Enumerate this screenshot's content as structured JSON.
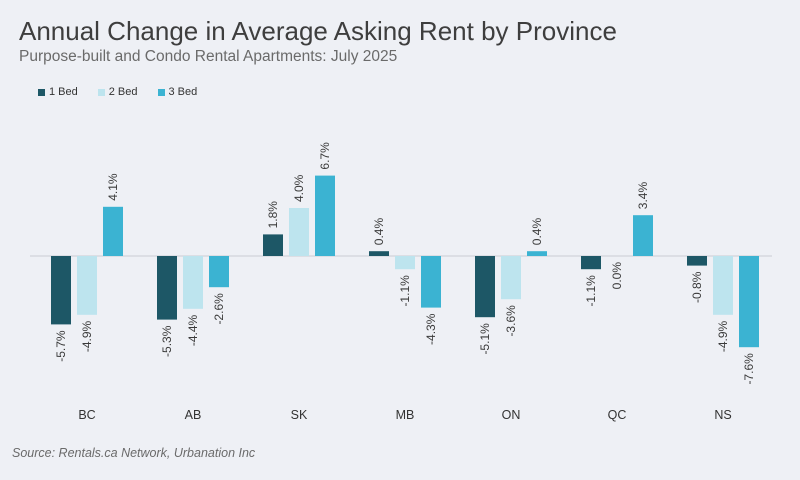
{
  "chart_data": {
    "type": "bar",
    "title": "Annual Change in Average Asking Rent by Province",
    "subtitle": "Purpose-built and Condo Rental Apartments: July 2025",
    "categories": [
      "BC",
      "AB",
      "SK",
      "MB",
      "ON",
      "QC",
      "NS"
    ],
    "series": [
      {
        "name": "1 Bed",
        "color": "#1d5766",
        "values": [
          -5.7,
          -5.3,
          1.8,
          0.4,
          -5.1,
          -1.1,
          -0.8
        ],
        "labels": [
          "-5.7%",
          "-5.3%",
          "1.8%",
          "0.4%",
          "-5.1%",
          "-1.1%",
          "-0.8%"
        ]
      },
      {
        "name": "2 Bed",
        "color": "#bde4ee",
        "values": [
          -4.9,
          -4.4,
          4.0,
          -1.1,
          -3.6,
          0.0,
          -4.9
        ],
        "labels": [
          "-4.9%",
          "-4.4%",
          "4.0%",
          "-1.1%",
          "-3.6%",
          "0.0%",
          "-4.9%"
        ]
      },
      {
        "name": "3 Bed",
        "color": "#3bb3d2",
        "values": [
          4.1,
          -2.6,
          6.7,
          -4.3,
          0.4,
          3.4,
          -7.6
        ],
        "labels": [
          "4.1%",
          "-2.6%",
          "6.7%",
          "-4.3%",
          "0.4%",
          "3.4%",
          "-7.6%"
        ]
      }
    ],
    "xlabel": "",
    "ylabel": "",
    "grid": false,
    "legend": "top-left"
  },
  "source": "Source: Rentals.ca Network, Urbanation Inc"
}
